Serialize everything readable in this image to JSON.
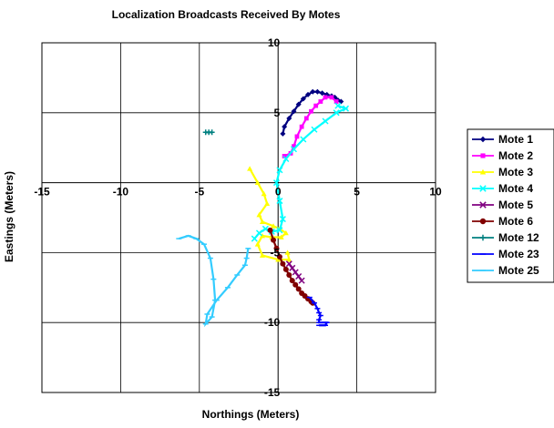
{
  "chart_data": {
    "type": "scatter",
    "title": "Localization Broadcasts Received By Motes",
    "xlabel": "Northings (Meters)",
    "ylabel": "Eastings (Meters)",
    "xlim": [
      -15,
      10
    ],
    "ylim": [
      -15,
      10
    ],
    "x_ticks": [
      -15,
      -10,
      -5,
      0,
      5,
      10
    ],
    "y_ticks": [
      -15,
      -10,
      -5,
      0,
      5,
      10
    ],
    "x_tick_labels": [
      "-15",
      "-10",
      "-5",
      "0",
      "5",
      "10"
    ],
    "y_tick_labels": [
      "-15",
      "-10",
      "-5",
      "0",
      "5",
      "10"
    ],
    "grid": true,
    "legend_position": "right",
    "series": [
      {
        "name": "Mote 1",
        "color": "#000080",
        "marker": "diamond",
        "x": [
          0.3,
          0.4,
          0.7,
          1.0,
          1.3,
          1.6,
          1.9,
          2.2,
          2.5,
          2.8,
          3.1,
          3.4,
          3.6,
          3.8,
          4.0
        ],
        "y": [
          3.5,
          4.0,
          4.6,
          5.1,
          5.6,
          6.0,
          6.3,
          6.5,
          6.5,
          6.4,
          6.3,
          6.2,
          6.1,
          5.9,
          5.8
        ]
      },
      {
        "name": "Mote 2",
        "color": "#ff00ff",
        "marker": "square",
        "x": [
          0.4,
          0.8,
          1.0,
          1.2,
          1.5,
          1.8,
          2.1,
          2.4,
          2.7,
          3.0,
          3.4,
          3.7
        ],
        "y": [
          1.9,
          2.1,
          2.6,
          3.3,
          4.0,
          4.6,
          5.1,
          5.5,
          5.8,
          6.1,
          6.1,
          5.8
        ]
      },
      {
        "name": "Mote 3",
        "color": "#ffff00",
        "marker": "triangle",
        "x": [
          -1.8,
          -1.3,
          -0.9,
          -0.7,
          -1.2,
          -1.0,
          -0.3,
          0.1,
          0.5,
          0.2,
          -0.4,
          -1.0,
          -1.3,
          -1.0,
          0.0,
          0.7,
          0.6
        ],
        "y": [
          1.0,
          0.0,
          -0.8,
          -1.5,
          -2.3,
          -2.8,
          -3.1,
          -3.3,
          -3.6,
          -3.9,
          -3.9,
          -3.8,
          -4.4,
          -5.2,
          -5.5,
          -5.5,
          -5.0
        ]
      },
      {
        "name": "Mote 4",
        "color": "#00ffff",
        "marker": "x",
        "x": [
          3.8,
          4.3,
          3.7,
          3.0,
          2.3,
          1.6,
          1.0,
          0.5,
          0.1,
          -0.1,
          0.1,
          0.3,
          0.1,
          -0.4,
          -0.8,
          -1.2,
          -1.5
        ],
        "y": [
          5.5,
          5.3,
          5.0,
          4.4,
          3.8,
          3.1,
          2.4,
          1.7,
          0.9,
          0.0,
          -1.3,
          -2.6,
          -3.4,
          -3.5,
          -3.3,
          -3.6,
          -4.0
        ]
      },
      {
        "name": "Mote 5",
        "color": "#800080",
        "marker": "x",
        "x": [
          0.7,
          0.9,
          1.1,
          1.3,
          1.5
        ],
        "y": [
          -5.8,
          -6.1,
          -6.4,
          -6.7,
          -7.0
        ]
      },
      {
        "name": "Mote 6",
        "color": "#800000",
        "marker": "circle",
        "x": [
          -0.5,
          -0.3,
          -0.1,
          0.1,
          0.3,
          0.5,
          0.7,
          0.9,
          1.1,
          1.3,
          1.5,
          1.7,
          1.9,
          2.1,
          2.2
        ],
        "y": [
          -3.4,
          -4.1,
          -4.7,
          -5.3,
          -5.8,
          -6.2,
          -6.6,
          -7.0,
          -7.3,
          -7.6,
          -7.9,
          -8.1,
          -8.3,
          -8.5,
          -8.6
        ]
      },
      {
        "name": "Mote 12",
        "color": "#008080",
        "marker": "plus",
        "x": [
          -4.6,
          -4.4,
          -4.2
        ],
        "y": [
          3.6,
          3.6,
          3.6
        ]
      },
      {
        "name": "Mote 23",
        "color": "#0000ff",
        "marker": "dash",
        "x": [
          2.0,
          2.3,
          2.5,
          2.6,
          2.7,
          2.6,
          2.6,
          2.9,
          3.1,
          3.0,
          2.6
        ],
        "y": [
          -8.2,
          -8.6,
          -9.0,
          -9.3,
          -9.5,
          -9.8,
          -10.0,
          -10.0,
          -10.0,
          -10.2,
          -10.2
        ]
      },
      {
        "name": "Mote 25",
        "color": "#33ccff",
        "marker": "dash",
        "x": [
          -6.3,
          -5.7,
          -5.2,
          -4.7,
          -4.3,
          -4.1,
          -4.0,
          -4.2,
          -4.6,
          -4.5,
          -3.9,
          -3.2,
          -2.6,
          -2.1,
          -2.0,
          -1.9
        ],
        "y": [
          -4.0,
          -3.8,
          -4.0,
          -4.4,
          -5.4,
          -6.9,
          -8.4,
          -9.6,
          -10.1,
          -9.4,
          -8.4,
          -7.5,
          -6.6,
          -5.9,
          -5.4,
          -4.7
        ]
      }
    ]
  }
}
